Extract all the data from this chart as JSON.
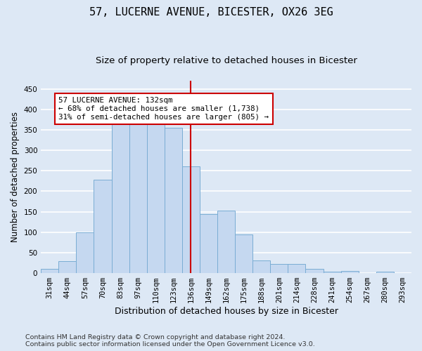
{
  "title": "57, LUCERNE AVENUE, BICESTER, OX26 3EG",
  "subtitle": "Size of property relative to detached houses in Bicester",
  "xlabel": "Distribution of detached houses by size in Bicester",
  "ylabel": "Number of detached properties",
  "categories": [
    "31sqm",
    "44sqm",
    "57sqm",
    "70sqm",
    "83sqm",
    "97sqm",
    "110sqm",
    "123sqm",
    "136sqm",
    "149sqm",
    "162sqm",
    "175sqm",
    "188sqm",
    "201sqm",
    "214sqm",
    "228sqm",
    "241sqm",
    "254sqm",
    "267sqm",
    "280sqm",
    "293sqm"
  ],
  "values": [
    10,
    29,
    100,
    229,
    365,
    372,
    374,
    355,
    260,
    145,
    153,
    94,
    31,
    22,
    23,
    11,
    4,
    6,
    0,
    4,
    0
  ],
  "bar_color": "#c5d8f0",
  "bar_edge_color": "#7aadd4",
  "vline_x": 8,
  "vline_color": "#cc0000",
  "annotation_text": "57 LUCERNE AVENUE: 132sqm\n← 68% of detached houses are smaller (1,738)\n31% of semi-detached houses are larger (805) →",
  "annotation_box_color": "#ffffff",
  "annotation_box_edge_color": "#cc0000",
  "ylim": [
    0,
    470
  ],
  "yticks": [
    0,
    50,
    100,
    150,
    200,
    250,
    300,
    350,
    400,
    450
  ],
  "footer_line1": "Contains HM Land Registry data © Crown copyright and database right 2024.",
  "footer_line2": "Contains public sector information licensed under the Open Government Licence v3.0.",
  "background_color": "#dde8f5",
  "plot_background_color": "#dde8f5",
  "grid_color": "#ffffff",
  "title_fontsize": 11,
  "subtitle_fontsize": 9.5,
  "xlabel_fontsize": 9,
  "ylabel_fontsize": 8.5,
  "tick_fontsize": 7.5,
  "footer_fontsize": 6.8,
  "annot_fontsize": 7.8
}
